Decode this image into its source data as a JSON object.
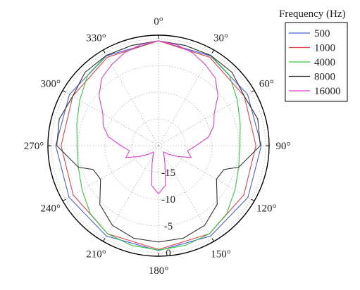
{
  "chart_data": {
    "type": "polar-line",
    "title": "",
    "legend": {
      "title": "Frequency (Hz)",
      "placement": "top-right",
      "entries": [
        {
          "label": "500",
          "color": "#4a5fd6"
        },
        {
          "label": "1000",
          "color": "#e8404a"
        },
        {
          "label": "4000",
          "color": "#2ecc40"
        },
        {
          "label": "8000",
          "color": "#333333"
        },
        {
          "label": "16000",
          "color": "#e040c8"
        }
      ]
    },
    "angle_ticks": [
      "0°",
      "30°",
      "60°",
      "90°",
      "120°",
      "150°",
      "180°",
      "210°",
      "240°",
      "270°",
      "300°",
      "330°"
    ],
    "angle_tick_values": [
      0,
      30,
      60,
      90,
      120,
      150,
      180,
      210,
      240,
      270,
      300,
      330
    ],
    "angle_direction": "clockwise, 0° at top",
    "radial_ticks": [
      "-15",
      "-10",
      "-5",
      "0"
    ],
    "radial_tick_values": [
      -15,
      -10,
      -5,
      0
    ],
    "radial_range": [
      -20,
      0
    ],
    "radial_grid_values": [
      -15,
      -10,
      -5
    ],
    "grid": true,
    "series": [
      {
        "name": "500",
        "color": "#4a5fd6",
        "angles": [
          0,
          30,
          60,
          90,
          120,
          150,
          180
        ],
        "values": [
          -0.4,
          -0.6,
          -0.8,
          -0.8,
          -0.7,
          -0.5,
          -0.4
        ]
      },
      {
        "name": "1000",
        "color": "#e8404a",
        "angles": [
          0,
          30,
          60,
          90,
          120,
          150,
          180
        ],
        "values": [
          -0.4,
          -0.9,
          -1.5,
          -1.8,
          -1.6,
          -1.0,
          -0.6
        ]
      },
      {
        "name": "4000",
        "color": "#2ecc40",
        "angles": [
          0,
          15,
          30,
          45,
          60,
          75,
          90,
          105,
          120,
          135,
          150,
          165,
          180
        ],
        "values": [
          -0.4,
          -0.6,
          -0.5,
          -1.3,
          -3.0,
          -4.2,
          -4.8,
          -4.5,
          -3.5,
          -2.0,
          -1.0,
          -0.7,
          -0.5
        ]
      },
      {
        "name": "8000",
        "color": "#333333",
        "angles": [
          0,
          15,
          30,
          45,
          60,
          75,
          90,
          105,
          110,
          120,
          135,
          150,
          165,
          180
        ],
        "values": [
          -0.4,
          -0.6,
          -0.5,
          -0.6,
          -1.5,
          -0.8,
          -1.0,
          -4.5,
          -7.0,
          -7.5,
          -4.5,
          -2.8,
          -2.1,
          -2.0
        ]
      },
      {
        "name": "16000",
        "color": "#e040c8",
        "angles": [
          0,
          10,
          20,
          30,
          40,
          50,
          60,
          70,
          80,
          90,
          100,
          110,
          120,
          130,
          140,
          150,
          160,
          170,
          180
        ],
        "values": [
          -0.4,
          -0.8,
          -1.5,
          -2.5,
          -3.5,
          -5.5,
          -8.0,
          -9.0,
          -10.5,
          -13.0,
          -14.5,
          -13.5,
          -16.0,
          -17.5,
          -18.5,
          -18.0,
          -16.5,
          -12.5,
          -11.0
        ]
      }
    ]
  }
}
